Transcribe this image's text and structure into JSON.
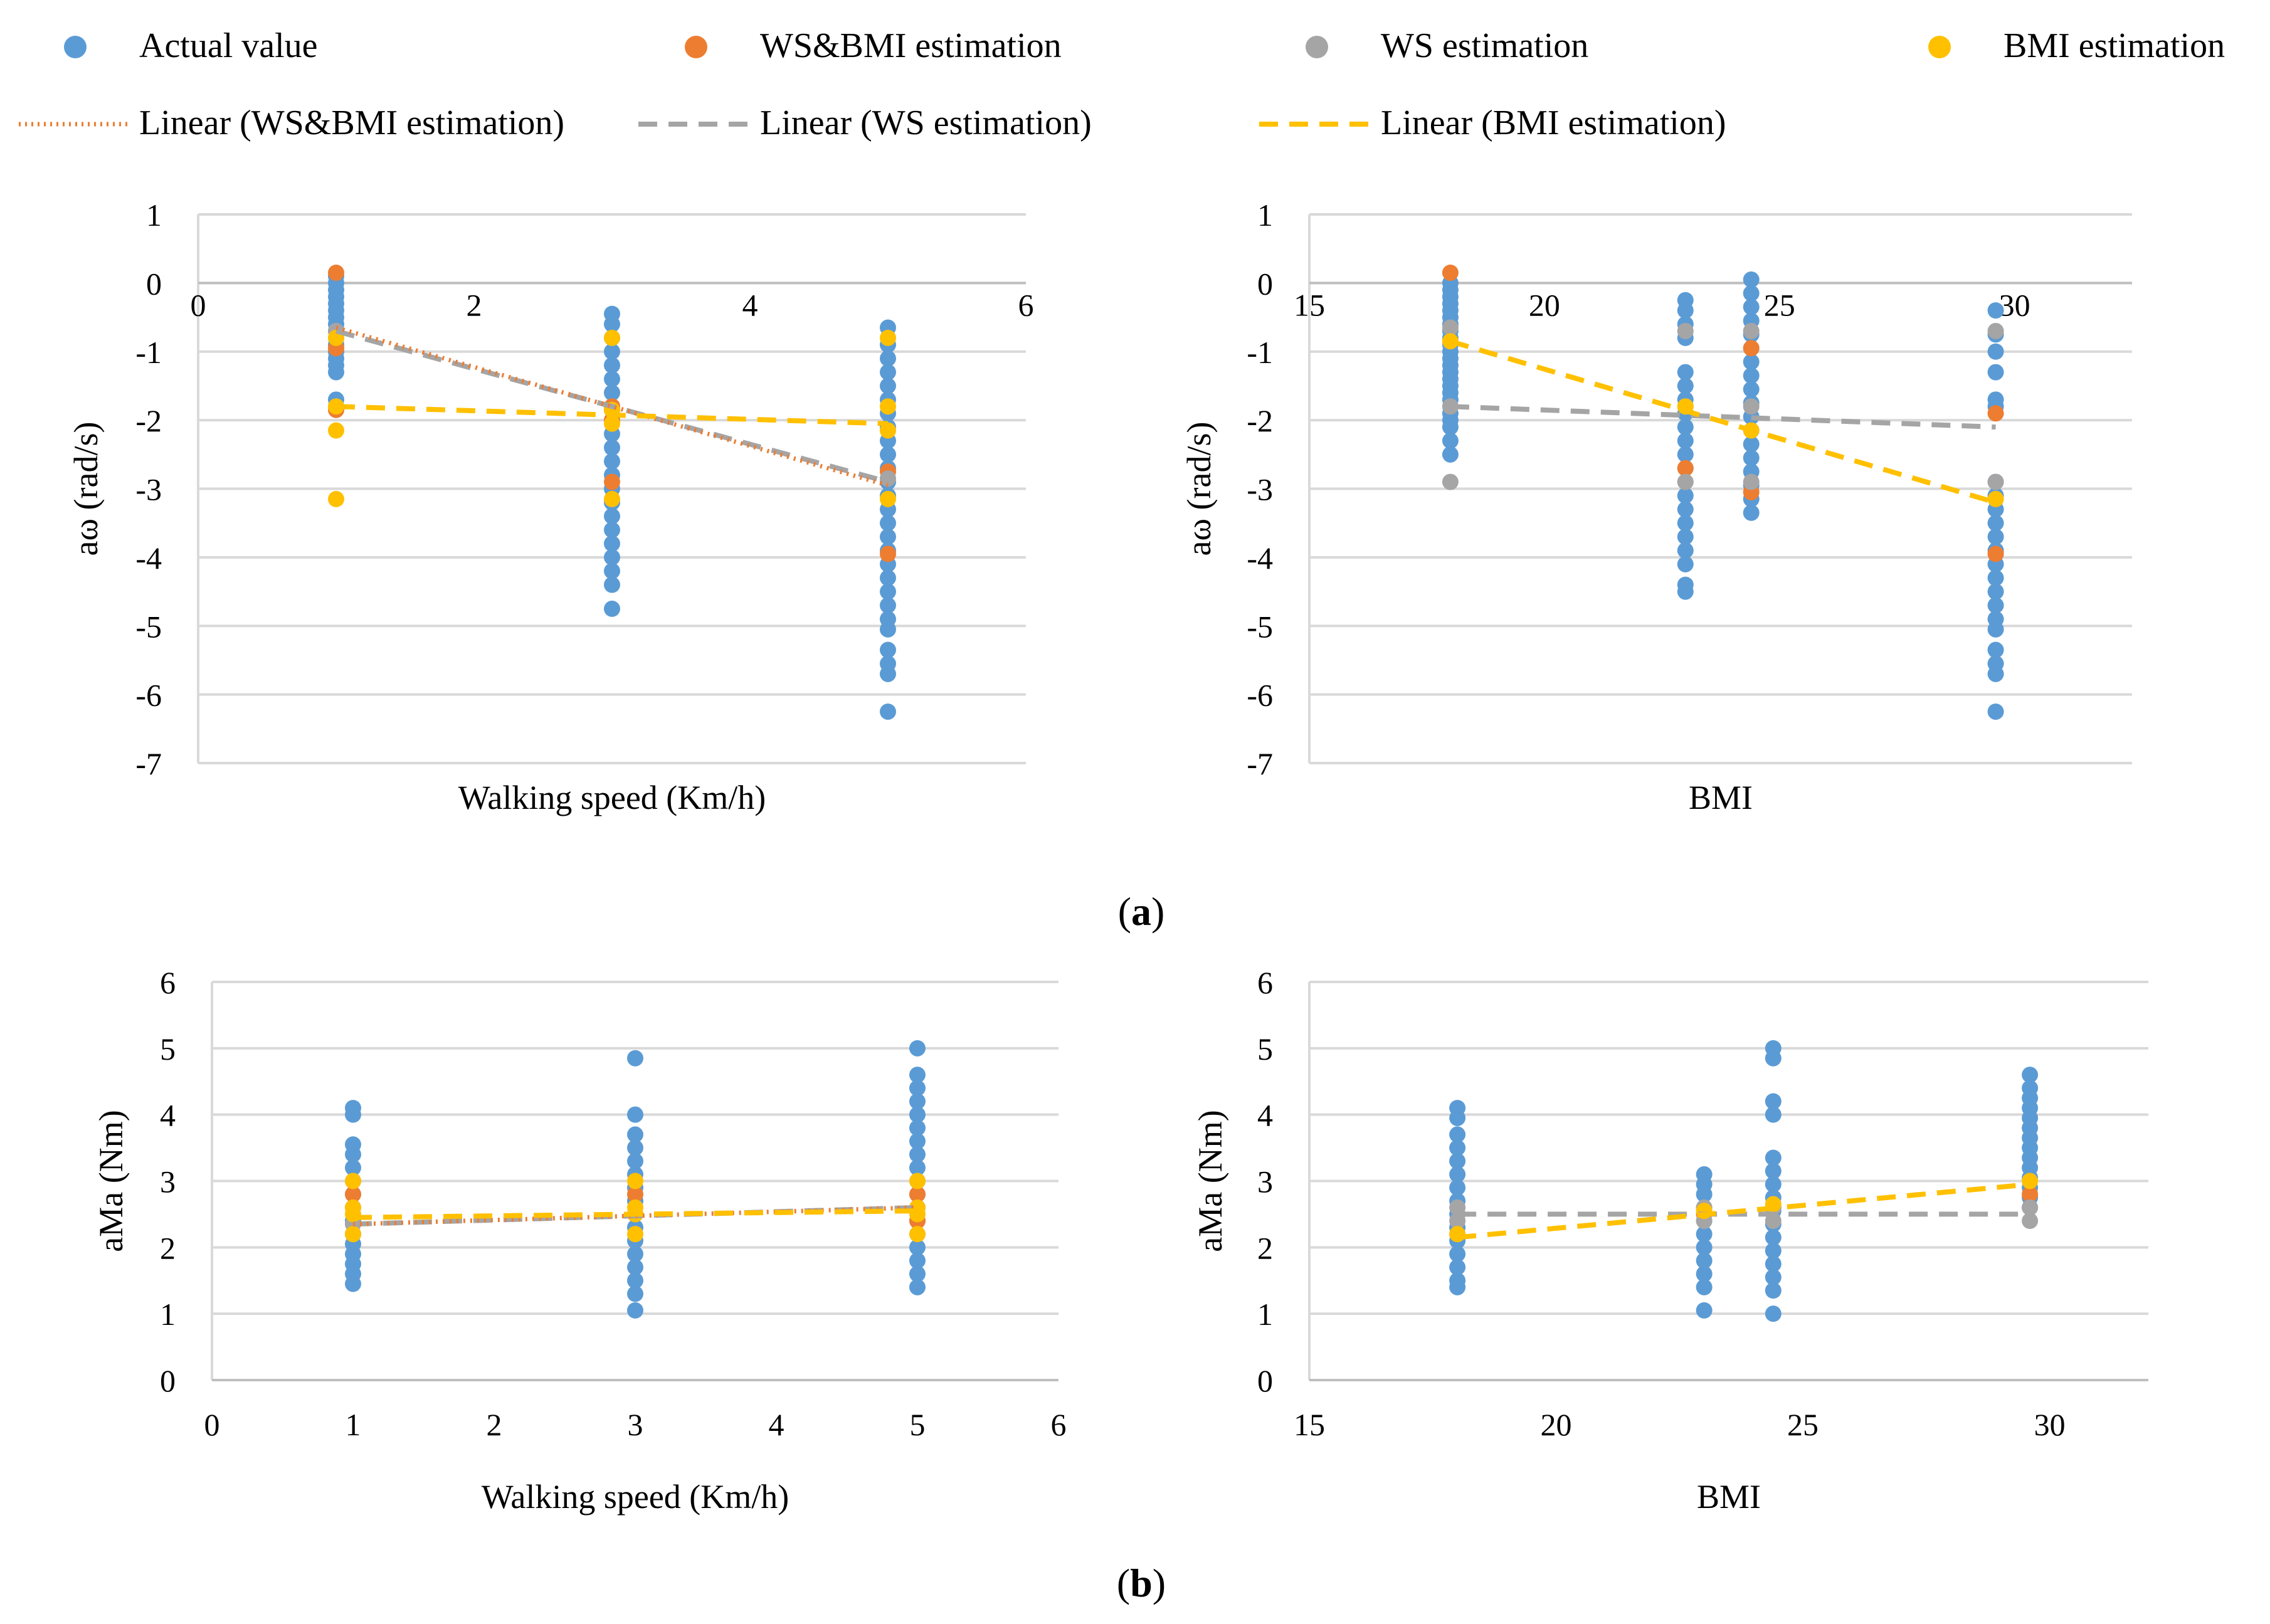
{
  "legend": {
    "actual": "Actual value",
    "wsbmi": "WS&BMI estimation",
    "ws": "WS estimation",
    "bmi": "BMI estimation",
    "lin_wsbmi": "Linear (WS&BMI estimation)",
    "lin_ws": "Linear (WS estimation)",
    "lin_bmi": "Linear (BMI estimation)"
  },
  "captions": {
    "a": "a",
    "b": "b"
  },
  "colors": {
    "actual": "#5B9BD5",
    "wsbmi": "#ED7D31",
    "ws": "#A5A5A5",
    "bmi": "#FFC000",
    "grid": "#D9D9D9"
  },
  "chart_data": [
    {
      "id": "a_ws",
      "type": "scatter",
      "xlabel": "Walking speed (Km/h)",
      "ylabel": "aω (rad/s)",
      "xlim": [
        0,
        6
      ],
      "ylim": [
        -7,
        1
      ],
      "xticks": [
        0,
        2,
        4,
        6
      ],
      "xticklabels": [
        "0",
        "2",
        "4",
        "6"
      ],
      "yticks": [
        1,
        0,
        -1,
        -2,
        -3,
        -4,
        -5,
        -6,
        -7
      ],
      "yticklabels": [
        "1",
        "0",
        "-1",
        "-2",
        "-3",
        "-4",
        "-5",
        "-6",
        "-7"
      ],
      "x_axis_at": 0,
      "grid": true,
      "actual": [
        {
          "x": 1,
          "ys": [
            0.1,
            0.0,
            -0.1,
            -0.2,
            -0.3,
            -0.4,
            -0.5,
            -0.6,
            -0.7,
            -0.8,
            -0.9,
            -1.0,
            -1.1,
            -1.2,
            -1.3,
            -1.7,
            -1.8
          ]
        },
        {
          "x": 3,
          "ys": [
            -0.45,
            -0.6,
            -0.8,
            -1.0,
            -1.2,
            -1.4,
            -1.6,
            -1.8,
            -2.0,
            -2.2,
            -2.4,
            -2.6,
            -2.8,
            -3.0,
            -3.2,
            -3.4,
            -3.6,
            -3.8,
            -4.0,
            -4.2,
            -4.4,
            -4.75
          ]
        },
        {
          "x": 5,
          "ys": [
            -0.65,
            -0.9,
            -1.1,
            -1.3,
            -1.5,
            -1.7,
            -1.9,
            -2.1,
            -2.3,
            -2.5,
            -2.7,
            -2.9,
            -3.1,
            -3.3,
            -3.5,
            -3.7,
            -3.9,
            -4.1,
            -4.3,
            -4.5,
            -4.7,
            -4.9,
            -5.05,
            -5.35,
            -5.55,
            -5.7,
            -6.25
          ]
        }
      ],
      "wsbmi": [
        {
          "x": 1,
          "ys": [
            0.15,
            -0.95,
            -1.85
          ]
        },
        {
          "x": 3,
          "ys": [
            -1.8,
            -2.0,
            -2.9
          ]
        },
        {
          "x": 5,
          "ys": [
            -2.75,
            -3.95
          ]
        }
      ],
      "ws": [
        {
          "x": 1,
          "ys": [
            -0.7
          ]
        },
        {
          "x": 3,
          "ys": [
            -1.85
          ]
        },
        {
          "x": 5,
          "ys": [
            -2.85
          ]
        }
      ],
      "bmi": [
        {
          "x": 1,
          "ys": [
            -0.8,
            -1.8,
            -2.15,
            -3.15
          ]
        },
        {
          "x": 3,
          "ys": [
            -0.8,
            -1.85,
            -2.05,
            -3.15
          ]
        },
        {
          "x": 5,
          "ys": [
            -0.8,
            -1.8,
            -2.15,
            -3.15
          ]
        }
      ],
      "lines": {
        "wsbmi": {
          "x": [
            1,
            5
          ],
          "y": [
            -0.65,
            -2.95
          ]
        },
        "ws": {
          "x": [
            1,
            5
          ],
          "y": [
            -0.7,
            -2.9
          ]
        },
        "bmi": {
          "x": [
            1,
            5
          ],
          "y": [
            -1.8,
            -2.05
          ]
        }
      }
    },
    {
      "id": "a_bmi",
      "type": "scatter",
      "xlabel": "BMI",
      "ylabel": "aω (rad/s)",
      "xlim": [
        15,
        32.5
      ],
      "ylim": [
        -7,
        1
      ],
      "xticks": [
        15,
        20,
        25,
        30
      ],
      "xticklabels": [
        "15",
        "20",
        "25",
        "30"
      ],
      "yticks": [
        1,
        0,
        -1,
        -2,
        -3,
        -4,
        -5,
        -6,
        -7
      ],
      "yticklabels": [
        "1",
        "0",
        "-1",
        "-2",
        "-3",
        "-4",
        "-5",
        "-6",
        "-7"
      ],
      "x_axis_at": 0,
      "grid": true,
      "actual": [
        {
          "x": 18,
          "ys": [
            0.0,
            -0.1,
            -0.2,
            -0.3,
            -0.4,
            -0.5,
            -0.6,
            -0.7,
            -0.8,
            -0.9,
            -1.0,
            -1.1,
            -1.2,
            -1.3,
            -1.4,
            -1.5,
            -1.6,
            -1.7,
            -1.8,
            -1.9,
            -2.0,
            -2.1,
            -2.3,
            -2.5
          ]
        },
        {
          "x": 23,
          "ys": [
            -0.25,
            -0.4,
            -0.6,
            -0.8,
            -1.3,
            -1.5,
            -1.7,
            -1.9,
            -2.1,
            -2.3,
            -2.5,
            -2.7,
            -2.9,
            -3.1,
            -3.3,
            -3.5,
            -3.7,
            -3.9,
            -4.1,
            -4.4,
            -4.5
          ]
        },
        {
          "x": 24.4,
          "ys": [
            0.05,
            -0.15,
            -0.35,
            -0.55,
            -0.75,
            -0.95,
            -1.15,
            -1.35,
            -1.55,
            -1.75,
            -1.95,
            -2.15,
            -2.35,
            -2.55,
            -2.75,
            -2.95,
            -3.15,
            -3.35
          ]
        },
        {
          "x": 29.6,
          "ys": [
            -0.4,
            -0.75,
            -1.0,
            -1.3,
            -1.7,
            -1.8,
            -2.9,
            -3.1,
            -3.3,
            -3.5,
            -3.7,
            -3.9,
            -4.1,
            -4.3,
            -4.5,
            -4.7,
            -4.9,
            -5.05,
            -5.35,
            -5.55,
            -5.7,
            -6.25
          ]
        }
      ],
      "wsbmi": [
        {
          "x": 18,
          "ys": [
            0.15
          ]
        },
        {
          "x": 23,
          "ys": [
            -2.7
          ]
        },
        {
          "x": 24.4,
          "ys": [
            -0.95,
            -3.05
          ]
        },
        {
          "x": 29.6,
          "ys": [
            -1.9,
            -3.95
          ]
        }
      ],
      "ws": [
        {
          "x": 18,
          "ys": [
            -0.65,
            -1.8,
            -2.9
          ]
        },
        {
          "x": 23,
          "ys": [
            -0.7,
            -1.8,
            -2.9
          ]
        },
        {
          "x": 24.4,
          "ys": [
            -0.7,
            -1.8,
            -2.9
          ]
        },
        {
          "x": 29.6,
          "ys": [
            -0.7,
            -2.9
          ]
        }
      ],
      "bmi": [
        {
          "x": 18,
          "ys": [
            -0.85
          ]
        },
        {
          "x": 23,
          "ys": [
            -1.8
          ]
        },
        {
          "x": 24.4,
          "ys": [
            -2.15
          ]
        },
        {
          "x": 29.6,
          "ys": [
            -3.15
          ]
        }
      ],
      "lines": {
        "ws": {
          "x": [
            18,
            29.6
          ],
          "y": [
            -1.8,
            -2.1
          ]
        },
        "bmi": {
          "x": [
            18,
            29.6
          ],
          "y": [
            -0.85,
            -3.2
          ]
        }
      }
    },
    {
      "id": "b_ws",
      "type": "scatter",
      "xlabel": "Walking speed (Km/h)",
      "ylabel": "aMa (Nm)",
      "xlim": [
        0,
        6
      ],
      "ylim": [
        0,
        6
      ],
      "xticks": [
        0,
        1,
        2,
        3,
        4,
        5,
        6
      ],
      "xticklabels": [
        "0",
        "1",
        "2",
        "3",
        "4",
        "5",
        "6"
      ],
      "yticks": [
        6,
        5,
        4,
        3,
        2,
        1,
        0
      ],
      "yticklabels": [
        "6",
        "5",
        "4",
        "3",
        "2",
        "1",
        "0"
      ],
      "x_axis_at": 0,
      "grid": true,
      "actual": [
        {
          "x": 1,
          "ys": [
            4.1,
            4.0,
            3.55,
            3.4,
            3.2,
            3.0,
            2.8,
            2.6,
            2.4,
            2.2,
            2.05,
            1.9,
            1.75,
            1.6,
            1.45
          ]
        },
        {
          "x": 3,
          "ys": [
            4.85,
            4.0,
            3.7,
            3.5,
            3.3,
            3.1,
            2.9,
            2.7,
            2.5,
            2.3,
            2.1,
            1.9,
            1.7,
            1.5,
            1.3,
            1.05
          ]
        },
        {
          "x": 5,
          "ys": [
            5.0,
            4.6,
            4.4,
            4.2,
            4.0,
            3.8,
            3.6,
            3.4,
            3.2,
            3.0,
            2.8,
            2.6,
            2.4,
            2.2,
            2.0,
            1.8,
            1.6,
            1.4
          ]
        }
      ],
      "wsbmi": [
        {
          "x": 1,
          "ys": [
            2.8,
            2.2
          ]
        },
        {
          "x": 3,
          "ys": [
            2.8,
            2.5
          ]
        },
        {
          "x": 5,
          "ys": [
            2.8,
            2.4
          ]
        }
      ],
      "ws": [
        {
          "x": 1,
          "ys": [
            2.35
          ]
        },
        {
          "x": 3,
          "ys": [
            2.5
          ]
        },
        {
          "x": 5,
          "ys": [
            2.6
          ]
        }
      ],
      "bmi": [
        {
          "x": 1,
          "ys": [
            3.0,
            2.6,
            2.5,
            2.2
          ]
        },
        {
          "x": 3,
          "ys": [
            3.0,
            2.6,
            2.5,
            2.2
          ]
        },
        {
          "x": 5,
          "ys": [
            3.0,
            2.6,
            2.5,
            2.2
          ]
        }
      ],
      "lines": {
        "wsbmi": {
          "x": [
            1,
            5
          ],
          "y": [
            2.35,
            2.6
          ]
        },
        "ws": {
          "x": [
            1,
            5
          ],
          "y": [
            2.35,
            2.6
          ]
        },
        "bmi": {
          "x": [
            1,
            5
          ],
          "y": [
            2.45,
            2.55
          ]
        }
      }
    },
    {
      "id": "b_bmi",
      "type": "scatter",
      "xlabel": "BMI",
      "ylabel": "aMa (Nm)",
      "xlim": [
        15,
        32
      ],
      "ylim": [
        0,
        6
      ],
      "xticks": [
        15,
        20,
        25,
        30
      ],
      "xticklabels": [
        "15",
        "20",
        "25",
        "30"
      ],
      "yticks": [
        6,
        5,
        4,
        3,
        2,
        1,
        0
      ],
      "yticklabels": [
        "6",
        "5",
        "4",
        "3",
        "2",
        "1",
        "0"
      ],
      "x_axis_at": 0,
      "grid": true,
      "actual": [
        {
          "x": 18,
          "ys": [
            4.1,
            3.95,
            3.7,
            3.5,
            3.3,
            3.1,
            2.9,
            2.7,
            2.5,
            2.3,
            2.1,
            1.9,
            1.7,
            1.5,
            1.4
          ]
        },
        {
          "x": 23,
          "ys": [
            3.1,
            2.95,
            2.8,
            2.6,
            2.4,
            2.2,
            2.0,
            1.8,
            1.6,
            1.4,
            1.05
          ]
        },
        {
          "x": 24.4,
          "ys": [
            5.0,
            4.85,
            4.2,
            4.0,
            3.35,
            3.15,
            2.95,
            2.75,
            2.55,
            2.35,
            2.15,
            1.95,
            1.75,
            1.55,
            1.35,
            1.0
          ]
        },
        {
          "x": 29.6,
          "ys": [
            4.6,
            4.4,
            4.25,
            4.1,
            3.95,
            3.8,
            3.65,
            3.5,
            3.35,
            3.2,
            3.05,
            2.9,
            2.75,
            2.6
          ]
        }
      ],
      "wsbmi": [
        {
          "x": 18,
          "ys": [
            2.2
          ]
        },
        {
          "x": 23,
          "ys": [
            2.5
          ]
        },
        {
          "x": 24.4,
          "ys": [
            2.6
          ]
        },
        {
          "x": 29.6,
          "ys": [
            2.8
          ]
        }
      ],
      "ws": [
        {
          "x": 18,
          "ys": [
            2.6,
            2.4
          ]
        },
        {
          "x": 23,
          "ys": [
            2.6,
            2.4
          ]
        },
        {
          "x": 24.4,
          "ys": [
            2.6,
            2.4
          ]
        },
        {
          "x": 29.6,
          "ys": [
            2.6,
            2.4
          ]
        }
      ],
      "bmi": [
        {
          "x": 18,
          "ys": [
            2.2
          ]
        },
        {
          "x": 23,
          "ys": [
            2.55
          ]
        },
        {
          "x": 24.4,
          "ys": [
            2.65
          ]
        },
        {
          "x": 29.6,
          "ys": [
            3.0
          ]
        }
      ],
      "lines": {
        "ws": {
          "x": [
            18,
            29.6
          ],
          "y": [
            2.5,
            2.5
          ]
        },
        "bmi": {
          "x": [
            18,
            29.6
          ],
          "y": [
            2.15,
            2.95
          ]
        }
      }
    }
  ]
}
